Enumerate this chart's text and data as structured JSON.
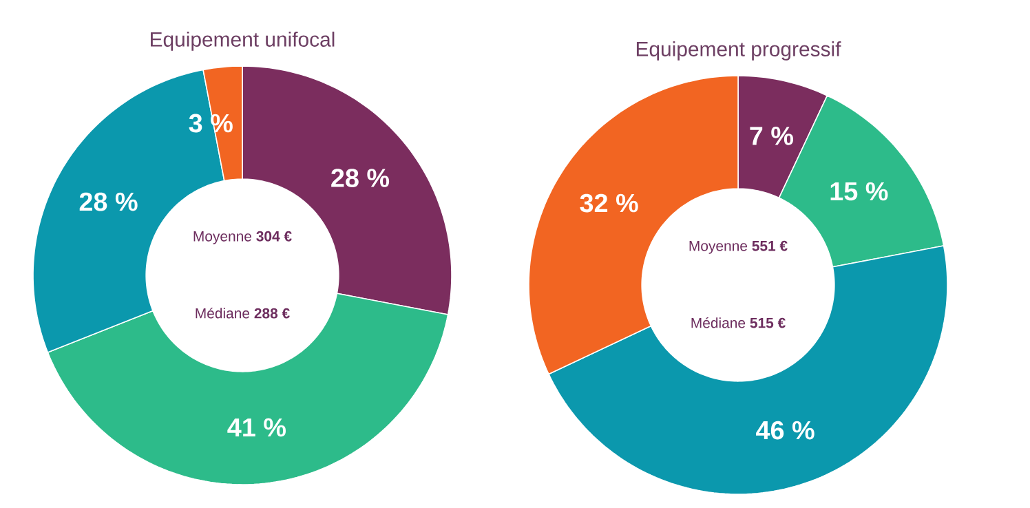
{
  "chart_data": [
    {
      "type": "donut",
      "title": "Equipement unifocal",
      "categories": [
        null,
        null,
        null,
        null
      ],
      "values": [
        28,
        41,
        28,
        3
      ],
      "colors": [
        "#7b2d5e",
        "#2dbb8a",
        "#0b98ad",
        "#f26522"
      ],
      "value_labels": [
        "28 %",
        "41 %",
        "28 %",
        "3 %"
      ],
      "annotations": [
        "Moyenne **304 €**",
        "Médiane **288 €**"
      ]
    },
    {
      "type": "donut",
      "title": "Equipement progressif",
      "categories": [
        null,
        null,
        null,
        null
      ],
      "values": [
        7,
        15,
        46,
        32
      ],
      "colors": [
        "#7b2d5e",
        "#2dbb8a",
        "#0b98ad",
        "#f26522"
      ],
      "value_labels": [
        "7 %",
        "15 %",
        "46 %",
        "32 %"
      ],
      "annotations": [
        "Moyenne **551 €**",
        "Médiane **515 €**"
      ]
    }
  ]
}
